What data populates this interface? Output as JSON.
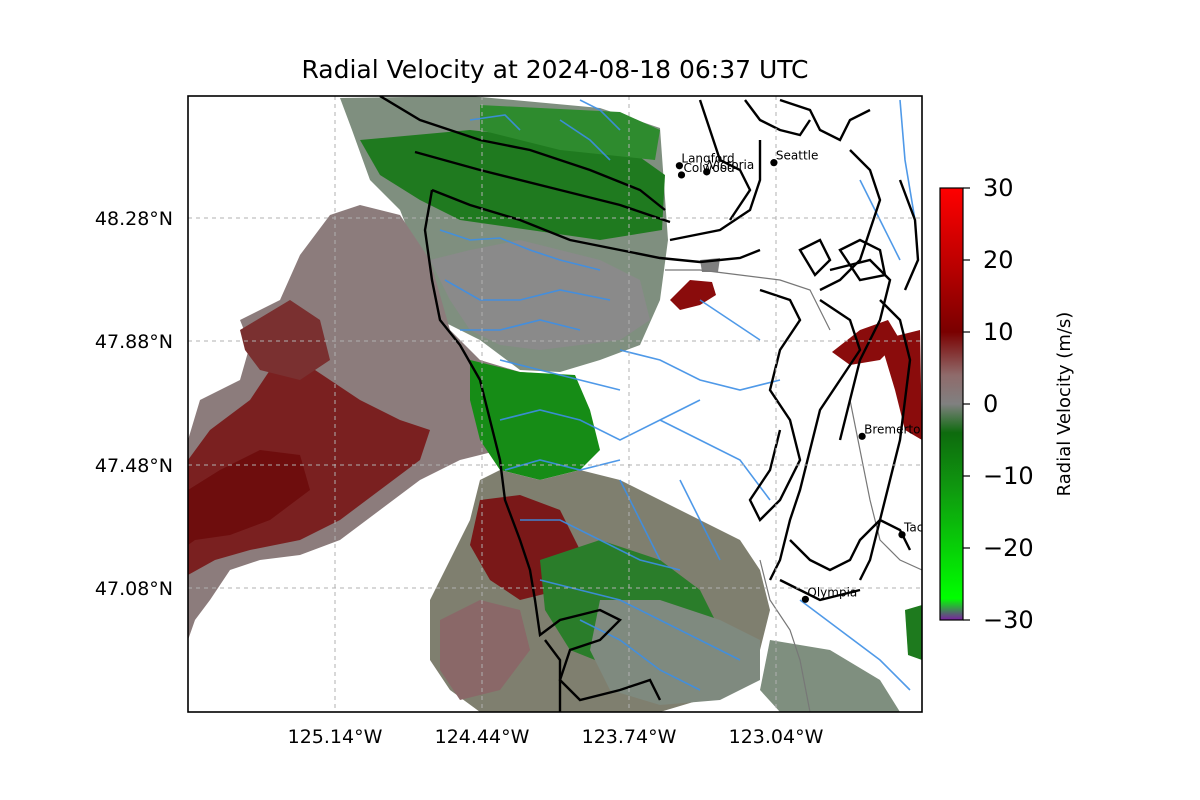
{
  "title": "Radial Velocity at 2024-08-18 06:37 UTC",
  "lon_ticks": [
    "125.14°W",
    "124.44°W",
    "123.74°W",
    "123.04°W"
  ],
  "lat_ticks": [
    "48.28°N",
    "47.88°N",
    "47.48°N",
    "47.08°N"
  ],
  "colorbar": {
    "label": "Radial Velocity (m/s)",
    "ticks": [
      "30",
      "20",
      "10",
      "0",
      "−10",
      "−20",
      "−30"
    ],
    "min": -30,
    "max": 30,
    "stops": [
      {
        "v": -30,
        "color": "#7b1fa2"
      },
      {
        "v": -27,
        "color": "#00ff00"
      },
      {
        "v": -12,
        "color": "#0f9a0f"
      },
      {
        "v": -4,
        "color": "#0e6b0e"
      },
      {
        "v": 0,
        "color": "#808080"
      },
      {
        "v": 4,
        "color": "#8f6b6b"
      },
      {
        "v": 10,
        "color": "#7a0000"
      },
      {
        "v": 20,
        "color": "#c00000"
      },
      {
        "v": 30,
        "color": "#ff0000"
      }
    ]
  },
  "cities": [
    {
      "name": "Seattle",
      "lon": -123.05,
      "lat": 48.46
    },
    {
      "name": "Langford",
      "lon": -123.5,
      "lat": 48.45
    },
    {
      "name": "Victoria",
      "lon": -123.37,
      "lat": 48.43
    },
    {
      "name": "Colwood",
      "lon": -123.49,
      "lat": 48.42
    },
    {
      "name": "Bremerton",
      "lon": -122.63,
      "lat": 47.57
    },
    {
      "name": "Tacoma",
      "lon": -122.44,
      "lat": 47.25
    },
    {
      "name": "Olympia",
      "lon": -122.9,
      "lat": 47.04
    }
  ],
  "colors": {
    "coast": "#000000",
    "rivers": "#3d8fe6",
    "borders": "#777777",
    "grid": "#b0b0b0"
  }
}
